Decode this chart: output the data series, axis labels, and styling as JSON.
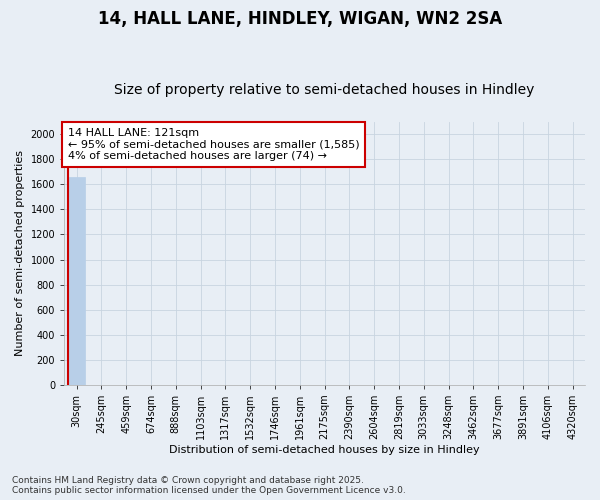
{
  "title": "14, HALL LANE, HINDLEY, WIGAN, WN2 2SA",
  "subtitle": "Size of property relative to semi-detached houses in Hindley",
  "xlabel": "Distribution of semi-detached houses by size in Hindley",
  "ylabel": "Number of semi-detached properties",
  "annotation_title": "14 HALL LANE: 121sqm",
  "annotation_line1": "← 95% of semi-detached houses are smaller (1,585)",
  "annotation_line2": "4% of semi-detached houses are larger (74) →",
  "footer1": "Contains HM Land Registry data © Crown copyright and database right 2025.",
  "footer2": "Contains public sector information licensed under the Open Government Licence v3.0.",
  "categories": [
    "30sqm",
    "245sqm",
    "459sqm",
    "674sqm",
    "888sqm",
    "1103sqm",
    "1317sqm",
    "1532sqm",
    "1746sqm",
    "1961sqm",
    "2175sqm",
    "2390sqm",
    "2604sqm",
    "2819sqm",
    "3033sqm",
    "3248sqm",
    "3462sqm",
    "3677sqm",
    "3891sqm",
    "4106sqm",
    "4320sqm"
  ],
  "values": [
    1659,
    0,
    0,
    0,
    0,
    0,
    0,
    0,
    0,
    0,
    0,
    0,
    0,
    0,
    0,
    0,
    0,
    0,
    0,
    0,
    0
  ],
  "bar_color": "#b8cfe8",
  "bar_edge_color": "#b8cfe8",
  "ylim": [
    0,
    2100
  ],
  "yticks": [
    0,
    200,
    400,
    600,
    800,
    1000,
    1200,
    1400,
    1600,
    1800,
    2000
  ],
  "grid_color": "#c8d4e0",
  "background_color": "#e8eef5",
  "annotation_box_color": "#ffffff",
  "annotation_box_edge_color": "#cc0000",
  "red_line_color": "#cc0000",
  "title_fontsize": 12,
  "subtitle_fontsize": 10,
  "axis_label_fontsize": 8,
  "tick_fontsize": 7,
  "annotation_fontsize": 8,
  "footer_fontsize": 6.5
}
